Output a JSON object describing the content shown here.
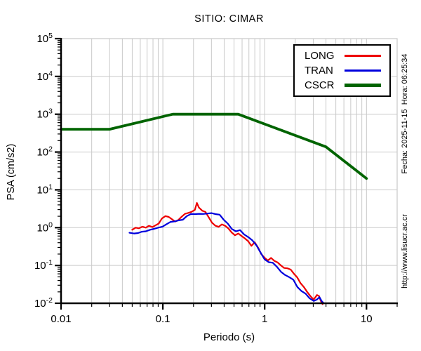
{
  "chart_data": {
    "type": "line",
    "title": "SITIO: CIMAR",
    "xlabel": "Periodo (s)",
    "ylabel": "PSA (cm/s2)",
    "x_scale": "log",
    "y_scale": "log",
    "xlim": [
      0.01,
      20
    ],
    "ylim": [
      0.01,
      100000
    ],
    "x_major_ticks": [
      0.01,
      0.1,
      1,
      10
    ],
    "x_tick_labels": [
      "0.01",
      "0.1",
      "1",
      "10"
    ],
    "y_major_exponents": [
      -2,
      -1,
      0,
      1,
      2,
      3,
      4,
      5
    ],
    "grid": true,
    "grid_color": "#c9c9c9",
    "legend_position": "top-right",
    "series": [
      {
        "name": "LONG",
        "color": "#ee0000",
        "width": 2.2,
        "points": [
          [
            0.05,
            0.88
          ],
          [
            0.054,
            1.0
          ],
          [
            0.058,
            0.96
          ],
          [
            0.063,
            1.06
          ],
          [
            0.068,
            1.0
          ],
          [
            0.073,
            1.12
          ],
          [
            0.079,
            1.04
          ],
          [
            0.085,
            1.16
          ],
          [
            0.091,
            1.28
          ],
          [
            0.098,
            1.75
          ],
          [
            0.106,
            2.02
          ],
          [
            0.114,
            1.92
          ],
          [
            0.123,
            1.66
          ],
          [
            0.132,
            1.45
          ],
          [
            0.142,
            1.6
          ],
          [
            0.153,
            1.95
          ],
          [
            0.165,
            2.32
          ],
          [
            0.178,
            2.45
          ],
          [
            0.191,
            2.62
          ],
          [
            0.206,
            2.95
          ],
          [
            0.216,
            4.5
          ],
          [
            0.226,
            3.4
          ],
          [
            0.244,
            2.8
          ],
          [
            0.262,
            2.6
          ],
          [
            0.283,
            1.85
          ],
          [
            0.304,
            1.35
          ],
          [
            0.328,
            1.12
          ],
          [
            0.353,
            1.05
          ],
          [
            0.38,
            1.22
          ],
          [
            0.409,
            1.12
          ],
          [
            0.441,
            0.95
          ],
          [
            0.475,
            0.74
          ],
          [
            0.511,
            0.63
          ],
          [
            0.551,
            0.7
          ],
          [
            0.593,
            0.6
          ],
          [
            0.639,
            0.52
          ],
          [
            0.688,
            0.44
          ],
          [
            0.741,
            0.33
          ],
          [
            0.798,
            0.41
          ],
          [
            0.859,
            0.3
          ],
          [
            0.925,
            0.2
          ],
          [
            0.996,
            0.16
          ],
          [
            1.073,
            0.135
          ],
          [
            1.155,
            0.158
          ],
          [
            1.244,
            0.132
          ],
          [
            1.34,
            0.12
          ],
          [
            1.443,
            0.1
          ],
          [
            1.554,
            0.086
          ],
          [
            1.673,
            0.084
          ],
          [
            1.802,
            0.078
          ],
          [
            1.941,
            0.06
          ],
          [
            2.09,
            0.048
          ],
          [
            2.251,
            0.034
          ],
          [
            2.424,
            0.027
          ],
          [
            2.61,
            0.02
          ],
          [
            2.811,
            0.0155
          ],
          [
            3.027,
            0.0125
          ],
          [
            3.26,
            0.0165
          ],
          [
            3.42,
            0.0155
          ],
          [
            3.56,
            0.0115
          ],
          [
            3.7,
            0.0095
          ]
        ]
      },
      {
        "name": "TRAN",
        "color": "#0000dd",
        "width": 2.2,
        "points": [
          [
            0.047,
            0.73
          ],
          [
            0.052,
            0.7
          ],
          [
            0.057,
            0.72
          ],
          [
            0.062,
            0.78
          ],
          [
            0.068,
            0.8
          ],
          [
            0.075,
            0.88
          ],
          [
            0.082,
            0.93
          ],
          [
            0.09,
            1.0
          ],
          [
            0.099,
            1.06
          ],
          [
            0.108,
            1.22
          ],
          [
            0.119,
            1.42
          ],
          [
            0.13,
            1.46
          ],
          [
            0.143,
            1.56
          ],
          [
            0.157,
            1.62
          ],
          [
            0.172,
            2.02
          ],
          [
            0.189,
            2.3
          ],
          [
            0.207,
            2.28
          ],
          [
            0.227,
            2.32
          ],
          [
            0.249,
            2.3
          ],
          [
            0.273,
            2.36
          ],
          [
            0.3,
            2.42
          ],
          [
            0.329,
            2.28
          ],
          [
            0.361,
            2.2
          ],
          [
            0.396,
            1.62
          ],
          [
            0.434,
            1.28
          ],
          [
            0.476,
            0.92
          ],
          [
            0.522,
            0.8
          ],
          [
            0.573,
            0.86
          ],
          [
            0.629,
            0.66
          ],
          [
            0.69,
            0.56
          ],
          [
            0.757,
            0.46
          ],
          [
            0.83,
            0.34
          ],
          [
            0.911,
            0.22
          ],
          [
            0.999,
            0.145
          ],
          [
            1.096,
            0.122
          ],
          [
            1.202,
            0.118
          ],
          [
            1.319,
            0.092
          ],
          [
            1.447,
            0.068
          ],
          [
            1.587,
            0.056
          ],
          [
            1.741,
            0.049
          ],
          [
            1.91,
            0.042
          ],
          [
            2.095,
            0.027
          ],
          [
            2.298,
            0.021
          ],
          [
            2.521,
            0.018
          ],
          [
            2.766,
            0.0135
          ],
          [
            3.034,
            0.0115
          ],
          [
            3.25,
            0.0125
          ],
          [
            3.45,
            0.0145
          ],
          [
            3.62,
            0.0115
          ],
          [
            3.8,
            0.01
          ]
        ]
      },
      {
        "name": "CSCR",
        "color": "#006400",
        "width": 3.8,
        "points": [
          [
            0.01,
            400
          ],
          [
            0.03,
            400
          ],
          [
            0.125,
            1000
          ],
          [
            0.55,
            1000
          ],
          [
            4.0,
            137
          ],
          [
            10.0,
            20
          ]
        ]
      }
    ]
  },
  "margin_text": {
    "fecha_hora": "Fecha: 2025-11-15  Hora: 06:25:34",
    "url": "http://www.lisucr.ac.cr"
  }
}
